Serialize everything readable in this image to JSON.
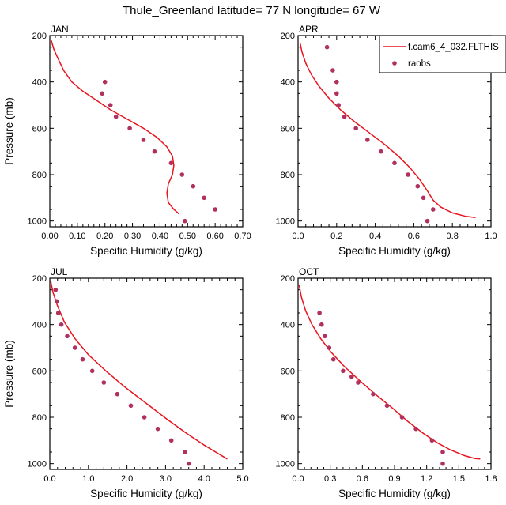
{
  "title": "Thule_Greenland  latitude= 77 N longitude= 67 W",
  "colors": {
    "model": "#e8141e",
    "obs": "#b03060",
    "axis": "#000000"
  },
  "chart_data": [
    {
      "type": "line",
      "panel": "JAN",
      "xlabel": "Specific Humidity (g/kg)",
      "ylabel": "Pressure (mb)",
      "xlim": [
        0,
        0.7
      ],
      "ylim": [
        200,
        1025
      ],
      "y_inverted": true,
      "xticks": [
        "0.00",
        "0.10",
        "0.20",
        "0.30",
        "0.40",
        "0.50",
        "0.60",
        "0.70"
      ],
      "yticks": [
        "200",
        "400",
        "600",
        "800",
        "1000"
      ],
      "series": [
        {
          "style": "line",
          "x": [
            0.005,
            0.015,
            0.03,
            0.05,
            0.08,
            0.12,
            0.17,
            0.22,
            0.28,
            0.34,
            0.39,
            0.425,
            0.445,
            0.45,
            0.445,
            0.43,
            0.425,
            0.43,
            0.45,
            0.46,
            0.47
          ],
          "y": [
            220,
            260,
            300,
            350,
            400,
            440,
            480,
            520,
            560,
            600,
            640,
            680,
            720,
            760,
            800,
            840,
            880,
            920,
            950,
            960,
            970
          ]
        },
        {
          "style": "points",
          "x": [
            0.2,
            0.19,
            0.22,
            0.24,
            0.29,
            0.34,
            0.38,
            0.44,
            0.48,
            0.52,
            0.56,
            0.6,
            0.49
          ],
          "y": [
            400,
            450,
            500,
            550,
            600,
            650,
            700,
            750,
            800,
            850,
            900,
            950,
            1000
          ]
        }
      ]
    },
    {
      "type": "line",
      "panel": "APR",
      "xlabel": "Specific Humidity (g/kg)",
      "ylabel": "",
      "xlim": [
        0,
        1.0
      ],
      "ylim": [
        200,
        1025
      ],
      "y_inverted": true,
      "xticks": [
        "0.0",
        "0.2",
        "0.4",
        "0.6",
        "0.8",
        "1.0"
      ],
      "yticks": [
        "200",
        "400",
        "600",
        "800",
        "1000"
      ],
      "legend": {
        "position": "top-right",
        "entries": [
          "f.cam6_4_032.FLTHIS",
          "raobs"
        ]
      },
      "series": [
        {
          "name": "f.cam6_4_032.FLTHIS",
          "style": "line",
          "x": [
            0.01,
            0.02,
            0.04,
            0.07,
            0.11,
            0.16,
            0.22,
            0.29,
            0.37,
            0.45,
            0.52,
            0.58,
            0.63,
            0.67,
            0.7,
            0.74,
            0.8,
            0.87,
            0.92
          ],
          "y": [
            230,
            270,
            320,
            370,
            420,
            470,
            520,
            570,
            620,
            670,
            720,
            770,
            820,
            870,
            910,
            940,
            965,
            980,
            985
          ]
        },
        {
          "name": "raobs",
          "style": "points",
          "x": [
            0.15,
            0.18,
            0.2,
            0.2,
            0.21,
            0.24,
            0.3,
            0.36,
            0.43,
            0.5,
            0.57,
            0.62,
            0.65,
            0.7,
            0.67
          ],
          "y": [
            250,
            350,
            400,
            450,
            500,
            550,
            600,
            650,
            700,
            750,
            800,
            850,
            900,
            950,
            1000
          ]
        }
      ]
    },
    {
      "type": "line",
      "panel": "JUL",
      "xlabel": "Specific Humidity (g/kg)",
      "ylabel": "Pressure (mb)",
      "xlim": [
        0,
        5.0
      ],
      "ylim": [
        200,
        1025
      ],
      "y_inverted": true,
      "xticks": [
        "0.0",
        "1.0",
        "2.0",
        "3.0",
        "4.0",
        "5.0"
      ],
      "yticks": [
        "200",
        "400",
        "600",
        "800",
        "1000"
      ],
      "series": [
        {
          "style": "line",
          "x": [
            0.02,
            0.08,
            0.2,
            0.38,
            0.65,
            1.0,
            1.45,
            1.95,
            2.5,
            3.05,
            3.55,
            4.0,
            4.3,
            4.6
          ],
          "y": [
            210,
            260,
            320,
            390,
            460,
            530,
            600,
            670,
            740,
            810,
            870,
            920,
            950,
            980
          ]
        },
        {
          "style": "points",
          "x": [
            0.15,
            0.18,
            0.22,
            0.3,
            0.45,
            0.65,
            0.85,
            1.1,
            1.4,
            1.75,
            2.1,
            2.45,
            2.8,
            3.15,
            3.5,
            3.6
          ],
          "y": [
            250,
            300,
            350,
            400,
            450,
            500,
            550,
            600,
            650,
            700,
            750,
            800,
            850,
            900,
            950,
            1000
          ]
        }
      ]
    },
    {
      "type": "line",
      "panel": "OCT",
      "xlabel": "Specific Humidity (g/kg)",
      "ylabel": "",
      "xlim": [
        0,
        1.8
      ],
      "ylim": [
        200,
        1025
      ],
      "y_inverted": true,
      "xticks": [
        "0.0",
        "0.3",
        "0.6",
        "0.9",
        "1.2",
        "1.5",
        "1.8"
      ],
      "yticks": [
        "200",
        "400",
        "600",
        "800",
        "1000"
      ],
      "series": [
        {
          "style": "line",
          "x": [
            0.01,
            0.03,
            0.07,
            0.13,
            0.21,
            0.31,
            0.43,
            0.57,
            0.72,
            0.88,
            1.03,
            1.17,
            1.3,
            1.42,
            1.55,
            1.65,
            1.7
          ],
          "y": [
            230,
            280,
            340,
            400,
            460,
            520,
            580,
            640,
            700,
            760,
            820,
            870,
            910,
            940,
            965,
            978,
            980
          ]
        },
        {
          "style": "points",
          "x": [
            0.2,
            0.22,
            0.25,
            0.29,
            0.33,
            0.42,
            0.5,
            0.56,
            0.7,
            0.83,
            0.97,
            1.1,
            1.25,
            1.35,
            1.35
          ],
          "y": [
            350,
            400,
            450,
            500,
            550,
            600,
            625,
            650,
            700,
            750,
            800,
            850,
            900,
            950,
            1000
          ]
        }
      ]
    }
  ]
}
